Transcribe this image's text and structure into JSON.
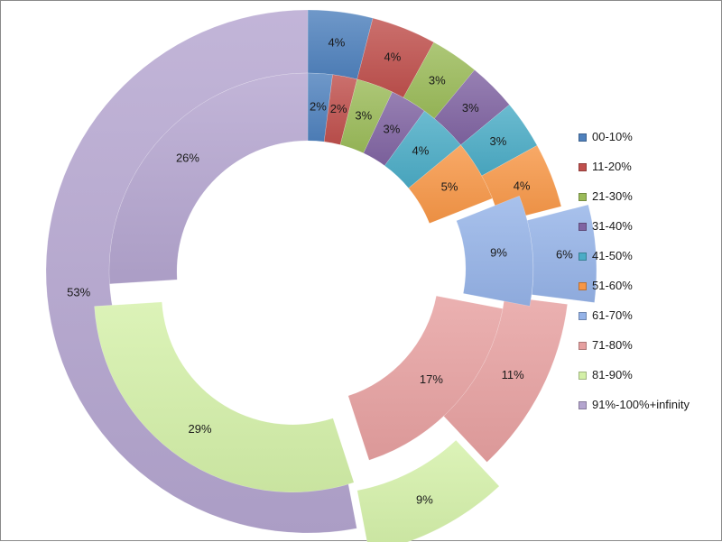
{
  "chart_data": {
    "type": "pie",
    "variant": "double-doughnut",
    "categories": [
      "00-10%",
      "11-20%",
      "21-30%",
      "31-40%",
      "41-50%",
      "51-60%",
      "61-70%",
      "71-80%",
      "81-90%",
      "91%-100%+infinity"
    ],
    "colors": [
      "#4f81bd",
      "#c0504d",
      "#9bbb59",
      "#8064a2",
      "#4bacc6",
      "#f79646",
      "#95b3e8",
      "#e6a0a0",
      "#d4f0a8",
      "#b4a5cf"
    ],
    "series": [
      {
        "ring": "inner",
        "values": [
          2,
          2,
          3,
          3,
          4,
          5,
          9,
          17,
          29,
          26
        ],
        "labels": [
          "2%",
          "2%",
          "3%",
          "3%",
          "4%",
          "5%",
          "9%",
          "17%",
          "29%",
          "26%"
        ]
      },
      {
        "ring": "outer",
        "values": [
          4,
          4,
          3,
          3,
          3,
          4,
          6,
          11,
          9,
          53
        ],
        "labels": [
          "4%",
          "4%",
          "3%",
          "3%",
          "3%",
          "4%",
          "6%",
          "11%",
          "9%",
          "53%"
        ]
      }
    ],
    "legend_position": "right",
    "exploded_slices": [
      "61-70%",
      "81-90%"
    ]
  }
}
